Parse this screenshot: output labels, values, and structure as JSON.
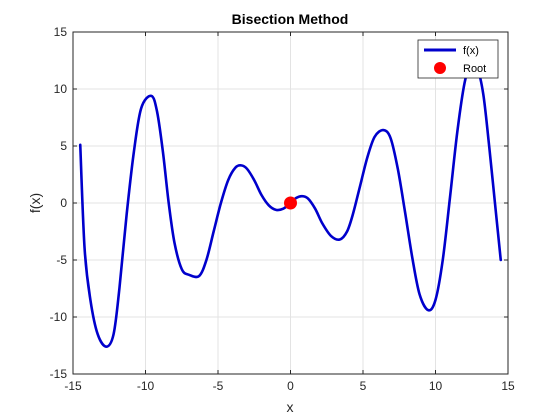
{
  "chart_data": {
    "type": "line",
    "title": "Bisection Method",
    "xlabel": "x",
    "ylabel": "f(x)",
    "xlim": [
      -15,
      15
    ],
    "ylim": [
      -15,
      15
    ],
    "xticks": [
      -15,
      -10,
      -5,
      0,
      5,
      10,
      15
    ],
    "yticks": [
      -15,
      -10,
      -5,
      0,
      5,
      10,
      15
    ],
    "grid": true,
    "legend_position": "top-right",
    "series": [
      {
        "name": "f(x)",
        "type": "line",
        "color": "#0000cc",
        "points": [
          [
            -14.5,
            5.1
          ],
          [
            -14.2,
            -4.0
          ],
          [
            -13.8,
            -8.5
          ],
          [
            -13.3,
            -11.5
          ],
          [
            -12.7,
            -12.6
          ],
          [
            -12.2,
            -11.5
          ],
          [
            -11.8,
            -7.5
          ],
          [
            -11.3,
            -1.0
          ],
          [
            -10.8,
            4.5
          ],
          [
            -10.3,
            8.3
          ],
          [
            -9.6,
            9.4
          ],
          [
            -9.2,
            8.0
          ],
          [
            -8.8,
            4.5
          ],
          [
            -8.4,
            0.0
          ],
          [
            -8.0,
            -3.5
          ],
          [
            -7.5,
            -5.8
          ],
          [
            -7.0,
            -6.3
          ],
          [
            -6.3,
            -6.4
          ],
          [
            -5.8,
            -5.0
          ],
          [
            -5.3,
            -2.5
          ],
          [
            -4.8,
            0.0
          ],
          [
            -4.3,
            2.0
          ],
          [
            -3.8,
            3.1
          ],
          [
            -3.4,
            3.3
          ],
          [
            -3.0,
            3.0
          ],
          [
            -2.5,
            2.0
          ],
          [
            -2.0,
            0.7
          ],
          [
            -1.5,
            -0.2
          ],
          [
            -1.0,
            -0.6
          ],
          [
            -0.5,
            -0.5
          ],
          [
            0.0,
            0.0
          ],
          [
            0.4,
            0.45
          ],
          [
            0.8,
            0.6
          ],
          [
            1.2,
            0.4
          ],
          [
            1.7,
            -0.5
          ],
          [
            2.2,
            -1.8
          ],
          [
            2.8,
            -2.9
          ],
          [
            3.4,
            -3.2
          ],
          [
            3.9,
            -2.5
          ],
          [
            4.3,
            -1.0
          ],
          [
            4.8,
            1.5
          ],
          [
            5.3,
            4.0
          ],
          [
            5.8,
            5.8
          ],
          [
            6.4,
            6.4
          ],
          [
            6.9,
            5.7
          ],
          [
            7.4,
            3.0
          ],
          [
            7.9,
            -0.8
          ],
          [
            8.4,
            -4.8
          ],
          [
            8.9,
            -8.0
          ],
          [
            9.5,
            -9.4
          ],
          [
            10.0,
            -8.5
          ],
          [
            10.5,
            -5.0
          ],
          [
            11.0,
            0.5
          ],
          [
            11.5,
            6.2
          ],
          [
            12.0,
            10.5
          ],
          [
            12.4,
            12.0
          ],
          [
            12.9,
            11.7
          ],
          [
            13.3,
            9.5
          ],
          [
            13.7,
            5.0
          ],
          [
            14.1,
            0.0
          ],
          [
            14.5,
            -5.0
          ]
        ]
      },
      {
        "name": "Root",
        "type": "scatter",
        "color": "#ff0000",
        "points": [
          [
            0,
            0
          ]
        ]
      }
    ]
  }
}
